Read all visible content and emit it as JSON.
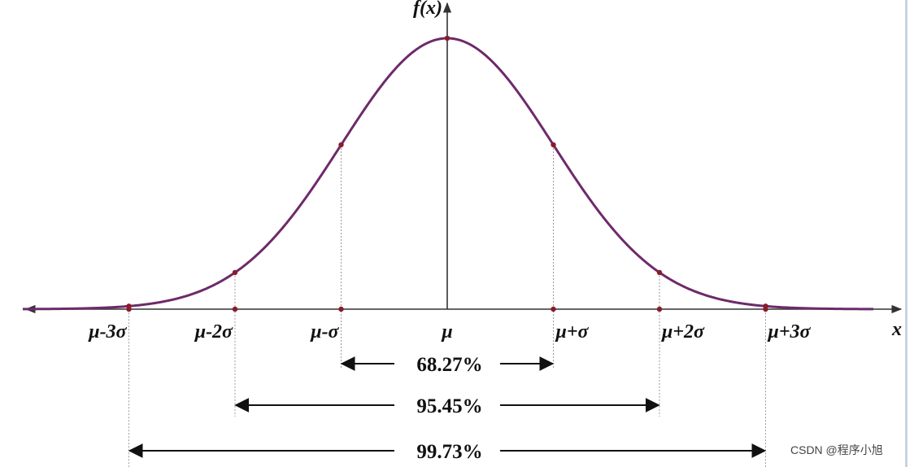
{
  "axes": {
    "y_label": "f(x)",
    "x_label": "x"
  },
  "x_marks": [
    {
      "label": "μ-3σ",
      "k": -3
    },
    {
      "label": "μ-2σ",
      "k": -2
    },
    {
      "label": "μ-σ",
      "k": -1
    },
    {
      "label": "μ",
      "k": 0
    },
    {
      "label": "μ+σ",
      "k": 1
    },
    {
      "label": "μ+2σ",
      "k": 2
    },
    {
      "label": "μ+3σ",
      "k": 3
    }
  ],
  "intervals": [
    {
      "label": "68.27%",
      "k": 1
    },
    {
      "label": "95.45%",
      "k": 2
    },
    {
      "label": "99.73%",
      "k": 3
    }
  ],
  "colors": {
    "curve": "#6e2a6a",
    "points": "#8a1c2a"
  },
  "watermark": "CSDN @程序小旭"
}
